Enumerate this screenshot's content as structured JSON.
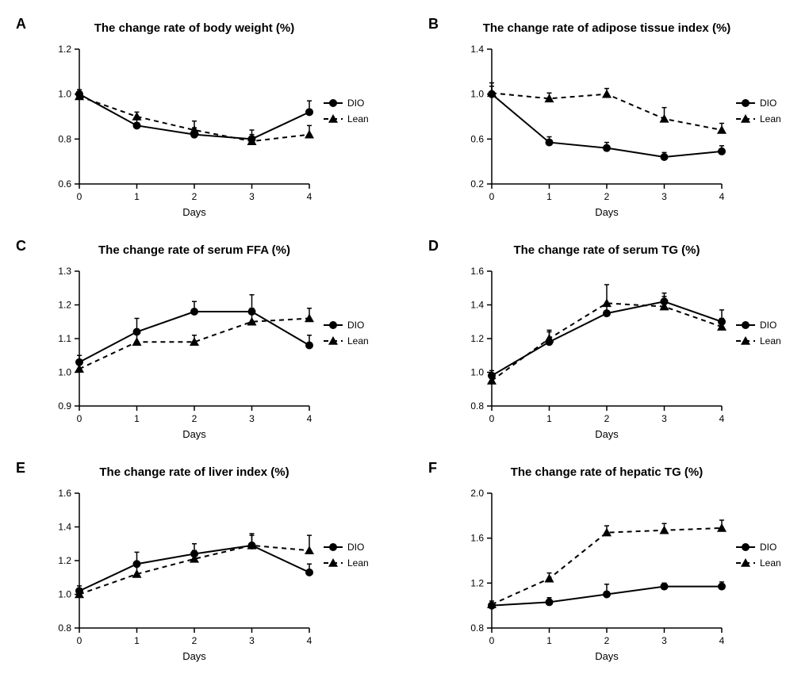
{
  "figure": {
    "background_color": "#ffffff",
    "axis_color": "#000000",
    "text_color": "#000000",
    "font_family": "Arial, Helvetica, sans-serif",
    "panel_label_fontsize": 18,
    "title_fontsize": 15,
    "tick_fontsize": 12,
    "axis_label_fontsize": 13,
    "legend_fontsize": 12,
    "marker_size": 5,
    "line_width": 2,
    "error_cap_width": 6,
    "dash_pattern": "6,5",
    "series_styles": {
      "DIO": {
        "color": "#000000",
        "marker": "circle",
        "dash": false
      },
      "Lean": {
        "color": "#000000",
        "marker": "triangle",
        "dash": true
      }
    },
    "x_axis": {
      "label": "Days",
      "ticks": [
        0,
        1,
        2,
        3,
        4
      ]
    }
  },
  "panels": [
    {
      "id": "A",
      "title": "The change rate of body weight (%)",
      "ylim": [
        0.6,
        1.2
      ],
      "ytick_step": 0.2,
      "series": {
        "DIO": {
          "y": [
            1.0,
            0.86,
            0.82,
            0.8,
            0.92
          ],
          "err": [
            0.02,
            0.03,
            0.03,
            0.04,
            0.05
          ]
        },
        "Lean": {
          "y": [
            0.99,
            0.9,
            0.84,
            0.79,
            0.82
          ],
          "err": [
            0.02,
            0.02,
            0.04,
            0.03,
            0.04
          ]
        }
      }
    },
    {
      "id": "B",
      "title": "The change rate of adipose tissue index (%)",
      "ylim": [
        0.2,
        1.4
      ],
      "ytick_step": 0.4,
      "series": {
        "DIO": {
          "y": [
            1.0,
            0.57,
            0.52,
            0.44,
            0.49
          ],
          "err": [
            0.07,
            0.05,
            0.05,
            0.04,
            0.05
          ]
        },
        "Lean": {
          "y": [
            1.01,
            0.96,
            1.0,
            0.78,
            0.68
          ],
          "err": [
            0.09,
            0.05,
            0.05,
            0.1,
            0.06
          ]
        }
      }
    },
    {
      "id": "C",
      "title": "The change rate of serum FFA (%)",
      "ylim": [
        0.9,
        1.3
      ],
      "ytick_step": 0.1,
      "series": {
        "DIO": {
          "y": [
            1.03,
            1.12,
            1.18,
            1.18,
            1.08
          ],
          "err": [
            0.02,
            0.04,
            0.03,
            0.05,
            0.03
          ]
        },
        "Lean": {
          "y": [
            1.01,
            1.09,
            1.09,
            1.15,
            1.16
          ],
          "err": [
            0.02,
            0.03,
            0.02,
            0.04,
            0.03
          ]
        }
      }
    },
    {
      "id": "D",
      "title": "The change rate of serum TG (%)",
      "ylim": [
        0.8,
        1.6
      ],
      "ytick_step": 0.2,
      "series": {
        "DIO": {
          "y": [
            0.98,
            1.18,
            1.35,
            1.42,
            1.3
          ],
          "err": [
            0.03,
            0.06,
            0.05,
            0.05,
            0.07
          ]
        },
        "Lean": {
          "y": [
            0.95,
            1.2,
            1.41,
            1.39,
            1.27
          ],
          "err": [
            0.03,
            0.05,
            0.11,
            0.06,
            0.05
          ]
        }
      }
    },
    {
      "id": "E",
      "title": "The change rate of liver index (%)",
      "ylim": [
        0.8,
        1.6
      ],
      "ytick_step": 0.2,
      "series": {
        "DIO": {
          "y": [
            1.02,
            1.18,
            1.24,
            1.29,
            1.13
          ],
          "err": [
            0.03,
            0.07,
            0.06,
            0.06,
            0.05
          ]
        },
        "Lean": {
          "y": [
            1.0,
            1.12,
            1.21,
            1.29,
            1.26
          ],
          "err": [
            0.02,
            0.05,
            0.05,
            0.07,
            0.09
          ]
        }
      }
    },
    {
      "id": "F",
      "title": "The change rate of hepatic TG (%)",
      "ylim": [
        0.8,
        2.0
      ],
      "ytick_step": 0.4,
      "series": {
        "DIO": {
          "y": [
            1.0,
            1.03,
            1.1,
            1.17,
            1.17
          ],
          "err": [
            0.02,
            0.04,
            0.09,
            0.03,
            0.04
          ]
        },
        "Lean": {
          "y": [
            1.01,
            1.24,
            1.65,
            1.67,
            1.69
          ],
          "err": [
            0.03,
            0.05,
            0.06,
            0.06,
            0.07
          ]
        }
      }
    }
  ],
  "legend_labels": {
    "DIO": "DIO",
    "Lean": "Lean"
  }
}
